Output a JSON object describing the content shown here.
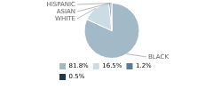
{
  "chart_data": {
    "type": "pie",
    "categories": [
      "BLACK",
      "WHITE",
      "ASIAN",
      "HISPANIC"
    ],
    "values": [
      81.8,
      16.5,
      1.2,
      0.5
    ],
    "value_labels": [
      "81.8%",
      "16.5%",
      "1.2%",
      "0.5%"
    ],
    "colors": [
      "#a2b9c7",
      "#ccdce6",
      "#5c7d91",
      "#1e3a50"
    ],
    "legend": "lower left"
  }
}
